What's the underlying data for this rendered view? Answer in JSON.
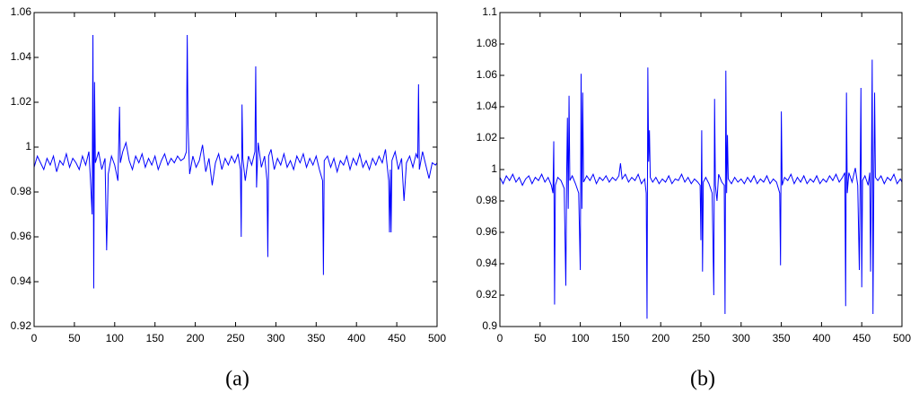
{
  "chart_data": [
    {
      "type": "line",
      "caption": "(a)",
      "xlim": [
        0,
        500
      ],
      "ylim": [
        0.92,
        1.06
      ],
      "xticks": [
        0,
        50,
        100,
        150,
        200,
        250,
        300,
        350,
        400,
        450,
        500
      ],
      "yticks": [
        0.92,
        0.94,
        0.96,
        0.98,
        1,
        1.02,
        1.04,
        1.06
      ],
      "x": [
        0,
        4,
        8,
        12,
        16,
        20,
        24,
        28,
        32,
        36,
        40,
        44,
        48,
        52,
        56,
        60,
        64,
        68,
        70,
        72,
        73,
        74,
        75,
        76,
        80,
        84,
        88,
        90,
        92,
        96,
        100,
        104,
        106,
        107,
        110,
        114,
        118,
        122,
        126,
        130,
        134,
        138,
        142,
        146,
        150,
        154,
        158,
        162,
        166,
        170,
        174,
        178,
        182,
        186,
        189,
        190,
        191,
        193,
        197,
        201,
        205,
        209,
        213,
        217,
        221,
        225,
        229,
        233,
        237,
        241,
        245,
        249,
        253,
        256,
        257,
        258,
        259,
        262,
        266,
        270,
        274,
        275,
        276,
        278,
        282,
        286,
        289,
        290,
        291,
        294,
        298,
        302,
        306,
        310,
        314,
        318,
        322,
        326,
        330,
        334,
        338,
        342,
        346,
        350,
        354,
        358,
        359,
        360,
        364,
        368,
        372,
        376,
        380,
        384,
        388,
        392,
        396,
        400,
        404,
        408,
        412,
        416,
        420,
        424,
        428,
        432,
        436,
        440,
        441,
        442,
        443,
        444,
        448,
        452,
        456,
        459,
        462,
        466,
        470,
        474,
        476,
        477,
        478,
        482,
        486,
        490,
        494,
        498,
        500
      ],
      "series": [
        {
          "color": "#0000ff",
          "values": [
            0.991,
            0.996,
            0.993,
            0.99,
            0.995,
            0.992,
            0.996,
            0.989,
            0.994,
            0.992,
            0.997,
            0.991,
            0.995,
            0.993,
            0.99,
            0.996,
            0.992,
            0.998,
            0.985,
            0.97,
            1.05,
            0.937,
            1.029,
            0.993,
            0.998,
            0.99,
            0.995,
            0.954,
            0.988,
            0.996,
            0.992,
            0.985,
            1.018,
            0.993,
            0.998,
            1.002,
            0.994,
            0.99,
            0.996,
            0.993,
            0.997,
            0.991,
            0.995,
            0.992,
            0.996,
            0.99,
            0.994,
            0.997,
            0.992,
            0.995,
            0.993,
            0.996,
            0.994,
            0.995,
            0.998,
            1.05,
            1.01,
            0.988,
            0.996,
            0.991,
            0.994,
            1.001,
            0.989,
            0.995,
            0.983,
            0.993,
            0.997,
            0.99,
            0.995,
            0.992,
            0.996,
            0.993,
            0.997,
            0.99,
            0.96,
            1.019,
            0.995,
            0.985,
            0.996,
            0.992,
            0.998,
            1.036,
            0.982,
            1.002,
            0.991,
            0.996,
            0.985,
            0.951,
            0.996,
            0.999,
            0.99,
            0.995,
            0.992,
            0.997,
            0.991,
            0.994,
            0.99,
            0.996,
            0.993,
            0.997,
            0.991,
            0.995,
            0.992,
            0.996,
            0.99,
            0.985,
            0.943,
            0.994,
            0.996,
            0.991,
            0.995,
            0.989,
            0.994,
            0.992,
            0.996,
            0.99,
            0.995,
            0.992,
            0.997,
            0.991,
            0.994,
            0.99,
            0.995,
            0.992,
            0.996,
            0.993,
            0.999,
            0.985,
            0.962,
            0.99,
            0.962,
            0.994,
            0.998,
            0.99,
            0.995,
            0.976,
            0.993,
            0.996,
            0.991,
            0.997,
            0.995,
            1.028,
            0.99,
            0.998,
            0.992,
            0.986,
            0.993,
            0.992,
            0.993
          ]
        }
      ]
    },
    {
      "type": "line",
      "caption": "(b)",
      "xlim": [
        0,
        500
      ],
      "ylim": [
        0.9,
        1.1
      ],
      "xticks": [
        0,
        50,
        100,
        150,
        200,
        250,
        300,
        350,
        400,
        450,
        500
      ],
      "yticks": [
        0.9,
        0.92,
        0.94,
        0.96,
        0.98,
        1,
        1.02,
        1.04,
        1.06,
        1.08,
        1.1
      ],
      "x": [
        0,
        4,
        8,
        12,
        16,
        20,
        24,
        28,
        32,
        36,
        40,
        44,
        48,
        52,
        56,
        60,
        64,
        66,
        67,
        68,
        69,
        72,
        76,
        80,
        82,
        83,
        84,
        85,
        86,
        87,
        90,
        94,
        98,
        100,
        101,
        102,
        103,
        104,
        108,
        112,
        116,
        120,
        124,
        128,
        132,
        136,
        140,
        144,
        148,
        150,
        152,
        156,
        160,
        164,
        168,
        172,
        176,
        180,
        182,
        183,
        184,
        185,
        186,
        187,
        190,
        194,
        198,
        202,
        206,
        210,
        214,
        218,
        222,
        226,
        230,
        234,
        238,
        242,
        246,
        249,
        250,
        251,
        252,
        253,
        256,
        260,
        264,
        266,
        267,
        268,
        270,
        272,
        276,
        279,
        280,
        281,
        282,
        283,
        284,
        288,
        292,
        296,
        300,
        304,
        308,
        312,
        316,
        320,
        324,
        328,
        332,
        336,
        340,
        344,
        348,
        349,
        350,
        351,
        354,
        358,
        362,
        366,
        370,
        374,
        378,
        382,
        386,
        390,
        394,
        398,
        402,
        406,
        410,
        414,
        418,
        422,
        426,
        429,
        430,
        431,
        432,
        434,
        438,
        442,
        445,
        447,
        448,
        449,
        450,
        451,
        454,
        458,
        460,
        461,
        462,
        463,
        464,
        465,
        466,
        467,
        470,
        474,
        478,
        482,
        486,
        490,
        494,
        498,
        500
      ],
      "series": [
        {
          "color": "#0000ff",
          "values": [
            0.995,
            0.991,
            0.996,
            0.993,
            0.997,
            0.992,
            0.995,
            0.99,
            0.994,
            0.996,
            0.991,
            0.995,
            0.993,
            0.997,
            0.992,
            0.995,
            0.99,
            0.985,
            1.018,
            0.914,
            0.99,
            0.995,
            0.993,
            0.988,
            0.926,
            0.995,
            1.033,
            0.975,
            1.047,
            0.993,
            0.996,
            0.991,
            0.985,
            0.936,
            1.061,
            0.975,
            1.049,
            0.992,
            0.996,
            0.993,
            0.997,
            0.991,
            0.995,
            0.993,
            0.996,
            0.992,
            0.995,
            0.993,
            0.996,
            1.004,
            0.994,
            0.997,
            0.992,
            0.995,
            0.993,
            0.997,
            0.991,
            0.994,
            0.985,
            0.905,
            1.065,
            1.005,
            1.025,
            0.995,
            0.992,
            0.995,
            0.991,
            0.994,
            0.992,
            0.996,
            0.991,
            0.994,
            0.993,
            0.997,
            0.992,
            0.995,
            0.991,
            0.994,
            0.992,
            0.99,
            0.955,
            1.025,
            0.935,
            0.992,
            0.995,
            0.991,
            0.985,
            0.92,
            1.045,
            0.99,
            0.98,
            0.997,
            0.992,
            0.99,
            0.908,
            1.063,
            0.985,
            1.022,
            0.994,
            0.991,
            0.995,
            0.992,
            0.994,
            0.991,
            0.995,
            0.992,
            0.996,
            0.991,
            0.994,
            0.992,
            0.996,
            0.991,
            0.994,
            0.992,
            0.985,
            0.939,
            1.037,
            0.99,
            0.995,
            0.993,
            0.997,
            0.991,
            0.995,
            0.992,
            0.996,
            0.991,
            0.994,
            0.992,
            0.996,
            0.991,
            0.994,
            0.992,
            0.996,
            0.993,
            0.997,
            0.992,
            0.995,
            0.998,
            0.913,
            1.049,
            0.985,
            0.998,
            0.992,
            1.001,
            0.99,
            0.936,
            0.99,
            1.052,
            0.925,
            0.993,
            0.996,
            0.99,
            0.998,
            0.935,
            0.995,
            1.07,
            0.908,
            0.99,
            1.049,
            0.995,
            0.993,
            0.996,
            0.991,
            0.995,
            0.993,
            0.997,
            0.991,
            0.994,
            0.992
          ]
        }
      ]
    }
  ]
}
